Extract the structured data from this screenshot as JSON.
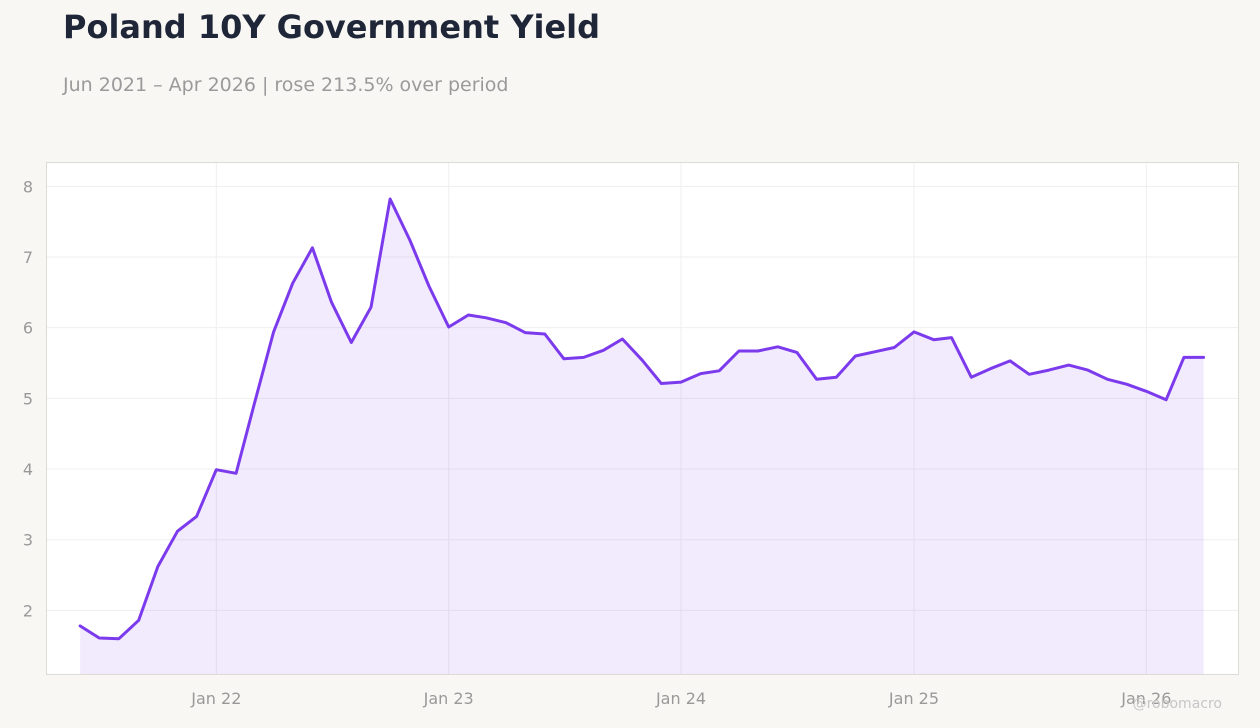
{
  "header": {
    "title": "Poland 10Y Government Yield",
    "subtitle": "Jun 2021 – Apr 2026 | rose 213.5% over period"
  },
  "watermark": "@robomacro",
  "colors": {
    "line": "#7c3aed",
    "fill": "#7c3aed",
    "grid": "#efefef",
    "frame": "#dcdcd6",
    "tick": "#999999"
  },
  "chart_data": {
    "type": "area",
    "title": "Poland 10Y Government Yield",
    "subtitle": "Jun 2021 – Apr 2026 | rose 213.5% over period",
    "xlabel": "",
    "ylabel": "",
    "ylim": [
      1.1,
      8.33
    ],
    "xlim": [
      "2021-04-10",
      "2026-05-25"
    ],
    "grid": true,
    "legend": "none",
    "y_ticks": [
      2,
      3,
      4,
      5,
      6,
      7,
      8
    ],
    "x_ticks": [
      {
        "date": "2022-01-01",
        "label": "Jan 22"
      },
      {
        "date": "2023-01-01",
        "label": "Jan 23"
      },
      {
        "date": "2024-01-01",
        "label": "Jan 24"
      },
      {
        "date": "2025-01-01",
        "label": "Jan 25"
      },
      {
        "date": "2026-01-01",
        "label": "Jan 26"
      }
    ],
    "series": [
      {
        "x": [
          "2021-06-01",
          "2021-07-01",
          "2021-08-01",
          "2021-09-01",
          "2021-10-01",
          "2021-11-01",
          "2021-12-01",
          "2022-01-01",
          "2022-02-01",
          "2022-03-01",
          "2022-04-01",
          "2022-05-01",
          "2022-06-01",
          "2022-07-01",
          "2022-08-01",
          "2022-09-01",
          "2022-10-01",
          "2022-11-01",
          "2022-12-01",
          "2023-01-01",
          "2023-02-01",
          "2023-03-01",
          "2023-04-01",
          "2023-05-01",
          "2023-06-01",
          "2023-07-01",
          "2023-08-01",
          "2023-09-01",
          "2023-10-01",
          "2023-11-01",
          "2023-12-01",
          "2024-01-01",
          "2024-02-01",
          "2024-03-01",
          "2024-04-01",
          "2024-05-01",
          "2024-06-01",
          "2024-07-01",
          "2024-08-01",
          "2024-09-01",
          "2024-10-01",
          "2024-11-01",
          "2024-12-01",
          "2025-01-01",
          "2025-02-01",
          "2025-03-01",
          "2025-04-01",
          "2025-05-01",
          "2025-06-01",
          "2025-07-01",
          "2025-08-01",
          "2025-09-01",
          "2025-10-01",
          "2025-11-01",
          "2025-12-01",
          "2026-01-01",
          "2026-02-01",
          "2026-03-01",
          "2026-04-01"
        ],
        "values": [
          1.78,
          1.61,
          1.6,
          1.86,
          2.62,
          3.12,
          3.33,
          3.99,
          3.94,
          4.9,
          5.94,
          6.63,
          7.13,
          6.36,
          5.79,
          6.29,
          7.82,
          7.24,
          6.59,
          6.01,
          6.18,
          6.14,
          6.07,
          5.93,
          5.91,
          5.56,
          5.58,
          5.68,
          5.84,
          5.54,
          5.21,
          5.23,
          5.35,
          5.39,
          5.67,
          5.67,
          5.73,
          5.65,
          5.27,
          5.3,
          5.6,
          5.66,
          5.72,
          5.94,
          5.83,
          5.86,
          5.3,
          5.42,
          5.53,
          5.34,
          5.4,
          5.47,
          5.4,
          5.27,
          5.2,
          5.1,
          4.98,
          5.58,
          5.58
        ]
      }
    ]
  }
}
